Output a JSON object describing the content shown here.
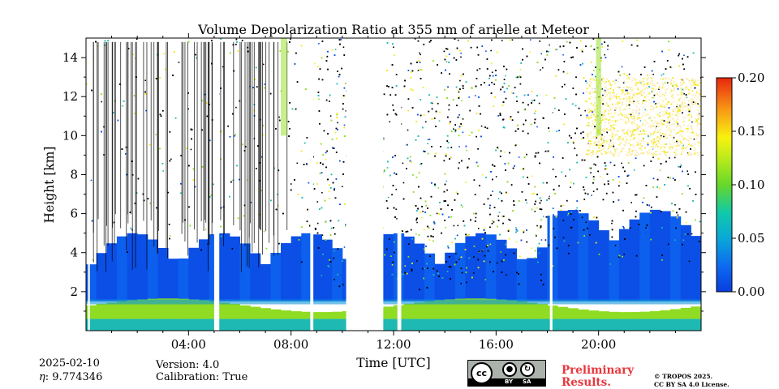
{
  "chart_data": {
    "type": "heatmap",
    "title": "Volume Depolarization Ratio at 355 nm of arielle at Meteor",
    "xlabel": "Time [UTC]",
    "ylabel": "Height [km]",
    "xlim_hours": [
      0,
      24
    ],
    "ylim": [
      0,
      15
    ],
    "x_tick_hours": [
      4,
      8,
      12,
      16,
      20
    ],
    "x_tick_labels": [
      "04:00",
      "08:00",
      "12:00",
      "16:00",
      "20:00"
    ],
    "y_ticks": [
      2,
      4,
      6,
      8,
      10,
      12,
      14
    ],
    "y_tick_labels": [
      "2",
      "4",
      "6",
      "8",
      "10",
      "12",
      "14"
    ],
    "colorbar": {
      "min": 0.0,
      "max": 0.2,
      "ticks": [
        0.0,
        0.05,
        0.1,
        0.15,
        0.2
      ],
      "tick_labels": [
        "0.00",
        "0.05",
        "0.10",
        "0.15",
        "0.20"
      ],
      "colormap": "jet"
    },
    "data_gaps_hours": [
      [
        0.08,
        0.15
      ],
      [
        5.0,
        5.2
      ],
      [
        8.75,
        8.87
      ],
      [
        10.15,
        11.6
      ],
      [
        12.15,
        12.3
      ],
      [
        18.1,
        18.2
      ]
    ],
    "layers": [
      {
        "name_hint": "boundary layer aerosol",
        "height_km": [
          0.0,
          1.5
        ],
        "depol_approx": 0.08
      },
      {
        "name_hint": "lower troposphere",
        "height_km": [
          1.5,
          4.0
        ],
        "depol_approx": 0.01
      },
      {
        "name_hint": "cirrus",
        "time_hours": [
          19.5,
          24.0
        ],
        "height_km": [
          9.0,
          13.0
        ],
        "depol_approx": 0.15
      }
    ]
  },
  "footer": {
    "date": "2025-02-10",
    "eta": ": 9.774346",
    "eta_symbol": "η",
    "version": "Version: 4.0",
    "calibration": "Calibration: True",
    "preliminary_line1": "Preliminary",
    "preliminary_line2": "Results.",
    "copyright_line1": "© TROPOS 2025.",
    "copyright_line2": "CC BY SA 4.0 License.",
    "license_badge": {
      "cc": "cc",
      "by": "BY",
      "sa": "SA"
    }
  },
  "colors": {
    "background": "#ffffff",
    "preliminary": "#e8373d",
    "badge_bg": "#aab2ab"
  }
}
